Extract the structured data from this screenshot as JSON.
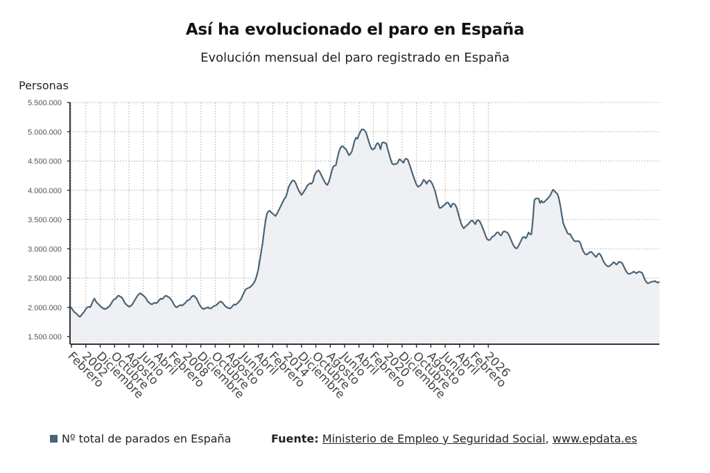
{
  "header": {
    "title": "Así ha evolucionado el paro en España",
    "subtitle": "Evolución mensual del paro registrado en España"
  },
  "legend": {
    "label": "Nº total de parados en España",
    "color": "#4a6375"
  },
  "source": {
    "prefix": "Fuente:",
    "link1": "Ministerio de Empleo y Seguridad Social",
    "separator": ",",
    "link2": "www.epdata.es"
  },
  "colors": {
    "line": "#4a6375",
    "area": "#eceef2",
    "grid": "#bbbbbb",
    "axis": "#333333"
  },
  "chart_data": {
    "type": "area",
    "title": "Así ha evolucionado el paro en España",
    "subtitle": "Evolución mensual del paro registrado en España",
    "ylabel": "Personas",
    "xlabel": "",
    "ylim": [
      1300000,
      5500000
    ],
    "yticks": [
      1500000,
      2000000,
      2500000,
      3000000,
      3500000,
      4000000,
      4500000,
      5000000,
      5500000
    ],
    "ytick_labels": [
      "1.500.000",
      "2.000.000",
      "2.500.000",
      "3.000.000",
      "3.500.000",
      "4.000.000",
      "4.500.000",
      "5.000.000",
      "5.500.000"
    ],
    "grid": true,
    "legend_position": "bottom-left",
    "x_start": "2001-01",
    "x_step": "month",
    "xtick_labels": [
      "Febrero",
      "2002",
      "Diciembre",
      "Octubre",
      "Agosto",
      "Junio",
      "Abril",
      "Febrero",
      "2008",
      "Diciembre",
      "Octubre",
      "Agosto",
      "Junio",
      "Abril",
      "Febrero",
      "2014",
      "Diciembre",
      "Octubre",
      "Agosto",
      "Junio",
      "Abril",
      "Febrero",
      "2020",
      "Diciembre",
      "Octubre",
      "Agosto",
      "Junio",
      "Abril",
      "Febrero",
      "2026"
    ],
    "series": [
      {
        "name": "Nº total de parados en España",
        "values": [
          2010000,
          1990000,
          1950000,
          1920000,
          1900000,
          1880000,
          1850000,
          1840000,
          1870000,
          1900000,
          1930000,
          1970000,
          2000000,
          2010000,
          2000000,
          2050000,
          2110000,
          2150000,
          2100000,
          2070000,
          2050000,
          2020000,
          2000000,
          1980000,
          1970000,
          1975000,
          1990000,
          2010000,
          2040000,
          2080000,
          2120000,
          2140000,
          2150000,
          2190000,
          2200000,
          2180000,
          2170000,
          2130000,
          2080000,
          2050000,
          2030000,
          2010000,
          2020000,
          2040000,
          2080000,
          2120000,
          2160000,
          2200000,
          2230000,
          2240000,
          2220000,
          2200000,
          2180000,
          2150000,
          2100000,
          2080000,
          2060000,
          2050000,
          2070000,
          2080000,
          2070000,
          2090000,
          2120000,
          2150000,
          2140000,
          2160000,
          2190000,
          2200000,
          2180000,
          2170000,
          2140000,
          2110000,
          2060000,
          2020000,
          2000000,
          2010000,
          2030000,
          2040000,
          2030000,
          2050000,
          2070000,
          2100000,
          2120000,
          2130000,
          2160000,
          2190000,
          2200000,
          2180000,
          2150000,
          2100000,
          2050000,
          2010000,
          1980000,
          1970000,
          1980000,
          1990000,
          2000000,
          1980000,
          1980000,
          2000000,
          2020000,
          2030000,
          2040000,
          2070000,
          2090000,
          2100000,
          2080000,
          2050000,
          2020000,
          2000000,
          1990000,
          1980000,
          1990000,
          2020000,
          2050000,
          2040000,
          2060000,
          2080000,
          2110000,
          2140000,
          2200000,
          2250000,
          2300000,
          2320000,
          2330000,
          2340000,
          2360000,
          2390000,
          2420000,
          2470000,
          2550000,
          2650000,
          2800000,
          2950000,
          3100000,
          3300000,
          3480000,
          3600000,
          3640000,
          3650000,
          3620000,
          3600000,
          3580000,
          3560000,
          3600000,
          3650000,
          3700000,
          3750000,
          3800000,
          3850000,
          3880000,
          3950000,
          4050000,
          4100000,
          4140000,
          4170000,
          4160000,
          4120000,
          4060000,
          4000000,
          3960000,
          3920000,
          3950000,
          3990000,
          4030000,
          4080000,
          4100000,
          4120000,
          4110000,
          4150000,
          4250000,
          4300000,
          4330000,
          4340000,
          4300000,
          4250000,
          4200000,
          4150000,
          4110000,
          4090000,
          4140000,
          4220000,
          4320000,
          4400000,
          4420000,
          4430000,
          4550000,
          4650000,
          4720000,
          4750000,
          4750000,
          4720000,
          4700000,
          4650000,
          4600000,
          4620000,
          4660000,
          4750000,
          4850000,
          4900000,
          4880000,
          4950000,
          5000000,
          5040000,
          5040000,
          5020000,
          4980000,
          4900000,
          4820000,
          4750000,
          4700000,
          4700000,
          4720000,
          4780000,
          4810000,
          4780000,
          4700000,
          4810000,
          4820000,
          4810000,
          4800000,
          4700000,
          4620000,
          4530000,
          4460000,
          4440000,
          4450000,
          4450000,
          4470000,
          4530000,
          4520000,
          4490000,
          4470000,
          4530000,
          4540000,
          4520000,
          4450000,
          4380000,
          4300000,
          4230000,
          4160000,
          4100000,
          4060000,
          4070000,
          4090000,
          4130000,
          4180000,
          4160000,
          4110000,
          4150000,
          4170000,
          4150000,
          4110000,
          4050000,
          3980000,
          3880000,
          3780000,
          3700000,
          3700000,
          3720000,
          3740000,
          3760000,
          3790000,
          3790000,
          3750000,
          3710000,
          3770000,
          3770000,
          3750000,
          3700000,
          3610000,
          3520000,
          3440000,
          3380000,
          3350000,
          3380000,
          3400000,
          3420000,
          3450000,
          3480000,
          3480000,
          3450000,
          3420000,
          3480000,
          3490000,
          3470000,
          3420000,
          3360000,
          3300000,
          3230000,
          3170000,
          3150000,
          3150000,
          3180000,
          3210000,
          3220000,
          3250000,
          3280000,
          3280000,
          3240000,
          3230000,
          3280000,
          3300000,
          3290000,
          3280000,
          3250000,
          3200000,
          3140000,
          3080000,
          3040000,
          3010000,
          3010000,
          3050000,
          3100000,
          3150000,
          3200000,
          3200000,
          3180000,
          3220000,
          3280000,
          3250000,
          3250000,
          3500000,
          3830000,
          3860000,
          3860000,
          3860000,
          3780000,
          3820000,
          3790000,
          3800000,
          3830000,
          3850000,
          3880000,
          3910000,
          3960000,
          4010000,
          3990000,
          3960000,
          3940000,
          3870000,
          3750000,
          3600000,
          3450000,
          3380000,
          3330000,
          3270000,
          3250000,
          3250000,
          3200000,
          3160000,
          3130000,
          3130000,
          3130000,
          3130000,
          3100000,
          3020000,
          2960000,
          2920000,
          2900000,
          2910000,
          2930000,
          2950000,
          2940000,
          2910000,
          2880000,
          2860000,
          2900000,
          2920000,
          2900000,
          2850000,
          2790000,
          2750000,
          2720000,
          2700000,
          2700000,
          2720000,
          2740000,
          2770000,
          2760000,
          2730000,
          2750000,
          2780000,
          2770000,
          2760000,
          2710000,
          2660000,
          2610000,
          2580000,
          2570000,
          2580000,
          2590000,
          2610000,
          2600000,
          2580000,
          2600000,
          2610000,
          2600000,
          2590000,
          2530000,
          2470000,
          2430000,
          2410000,
          2420000,
          2430000,
          2440000,
          2440000,
          2450000,
          2430000,
          2420000,
          2440000
        ]
      }
    ]
  }
}
